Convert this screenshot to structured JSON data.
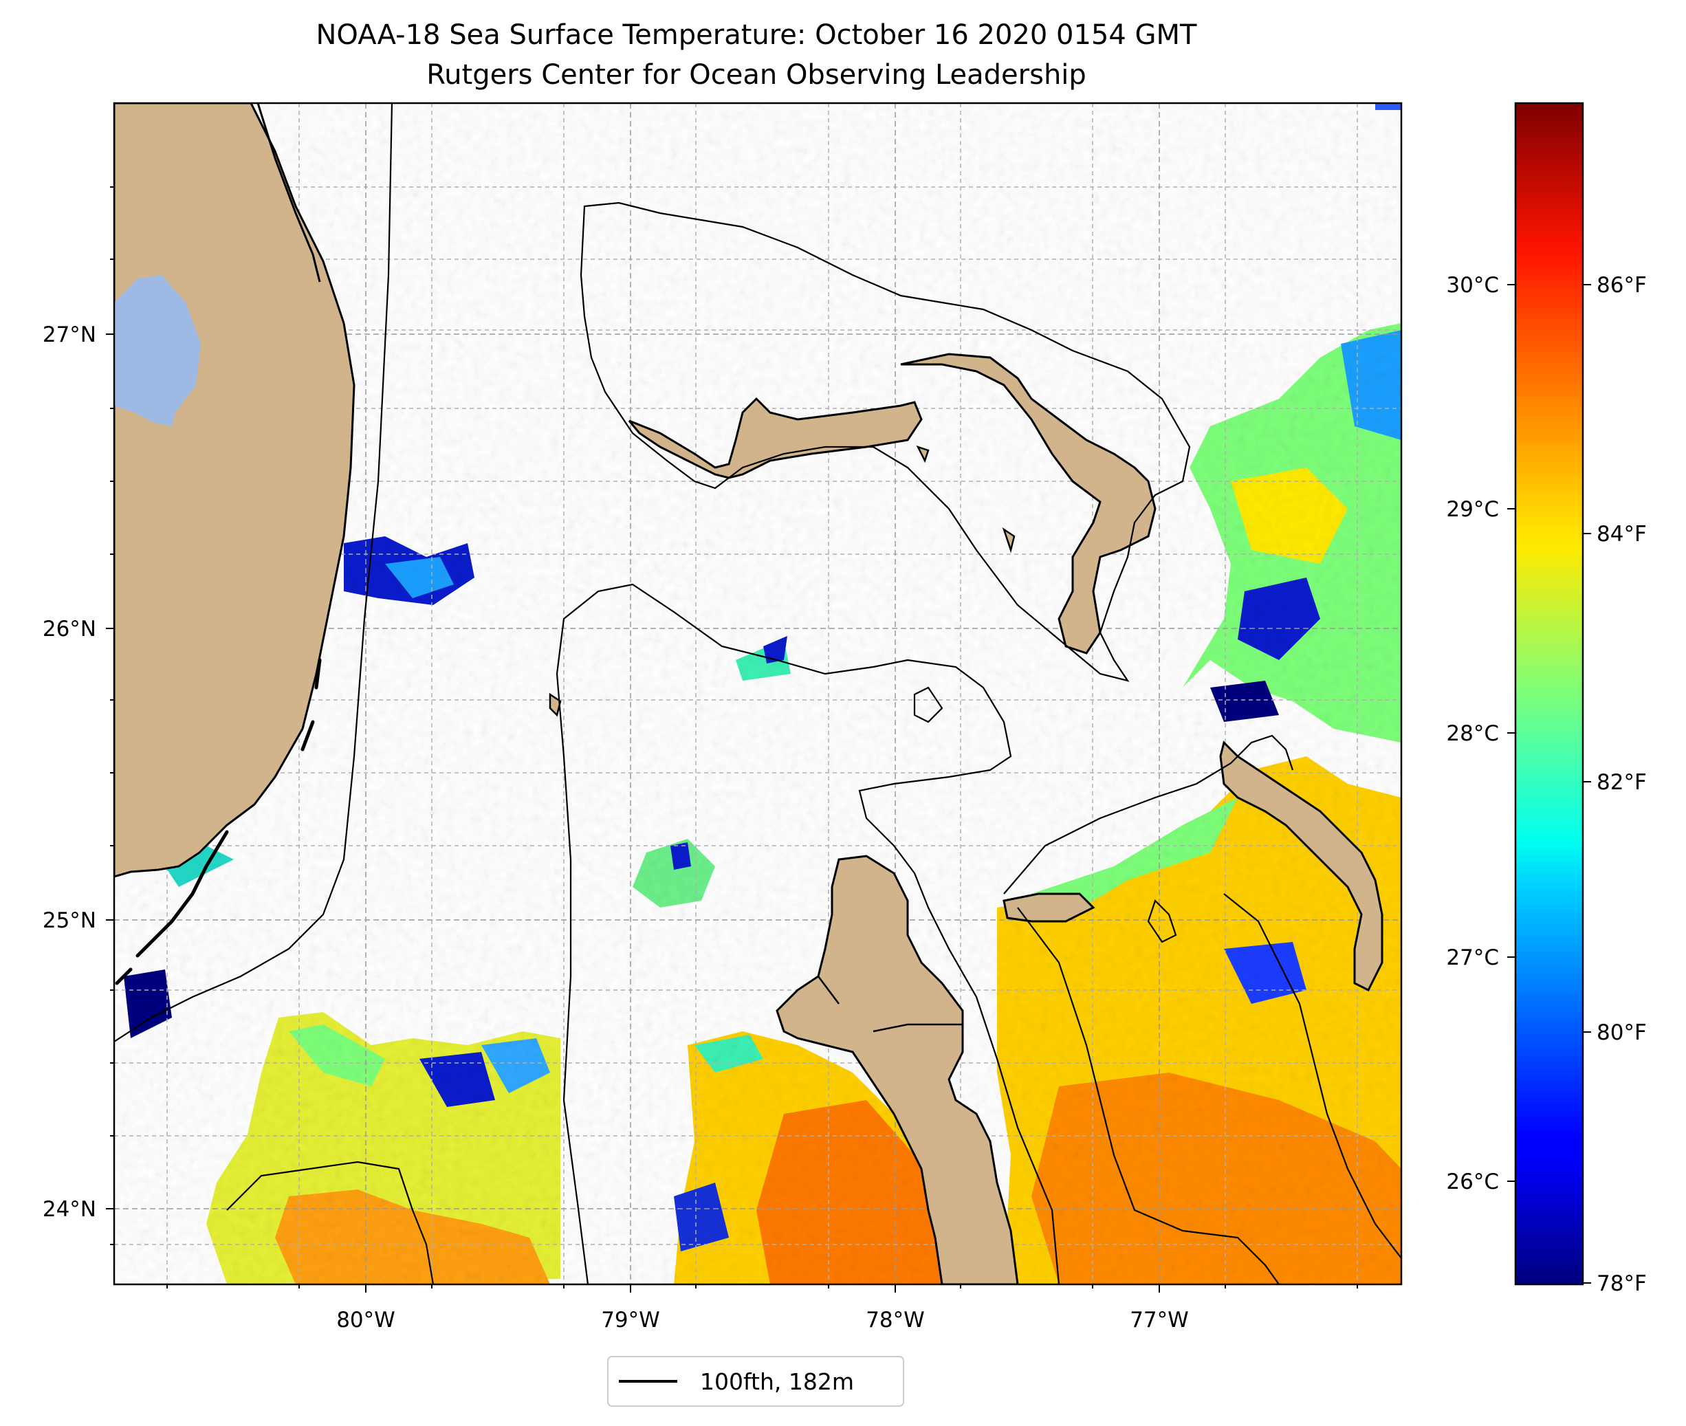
{
  "title": "NOAA-18 Sea Surface Temperature: October 16 2020 0154 GMT",
  "subtitle": "Rutgers Center for Ocean Observing Leadership",
  "map": {
    "lon_range": [
      -80.95,
      -76.1
    ],
    "lat_range": [
      23.75,
      27.8
    ],
    "lon_ticks": [
      {
        "value": -80,
        "label": "80°W"
      },
      {
        "value": -79,
        "label": "79°W"
      },
      {
        "value": -78,
        "label": "78°W"
      },
      {
        "value": -77,
        "label": "77°W"
      }
    ],
    "lat_ticks": [
      {
        "value": 24,
        "label": "24°N"
      },
      {
        "value": 25,
        "label": "25°N"
      },
      {
        "value": 26,
        "label": "26°N"
      },
      {
        "value": 27,
        "label": "27°N"
      }
    ],
    "grid": true,
    "colors": {
      "land": "#d2b48c",
      "lake": "#9db9e4",
      "coast": "#000000"
    }
  },
  "colorbar": {
    "colormap": "jet",
    "range_f": [
      78,
      87.6
    ],
    "celsius_ticks": [
      {
        "value": 26,
        "label": "26°C"
      },
      {
        "value": 27,
        "label": "27°C"
      },
      {
        "value": 28,
        "label": "28°C"
      },
      {
        "value": 29,
        "label": "29°C"
      },
      {
        "value": 30,
        "label": "30°C"
      }
    ],
    "fahrenheit_ticks": [
      {
        "value": 78,
        "label": "78°F"
      },
      {
        "value": 80,
        "label": "80°F"
      },
      {
        "value": 82,
        "label": "82°F"
      },
      {
        "value": 84,
        "label": "84°F"
      },
      {
        "value": 86,
        "label": "86°F"
      }
    ]
  },
  "legend": {
    "label": "100fth, 182m"
  }
}
